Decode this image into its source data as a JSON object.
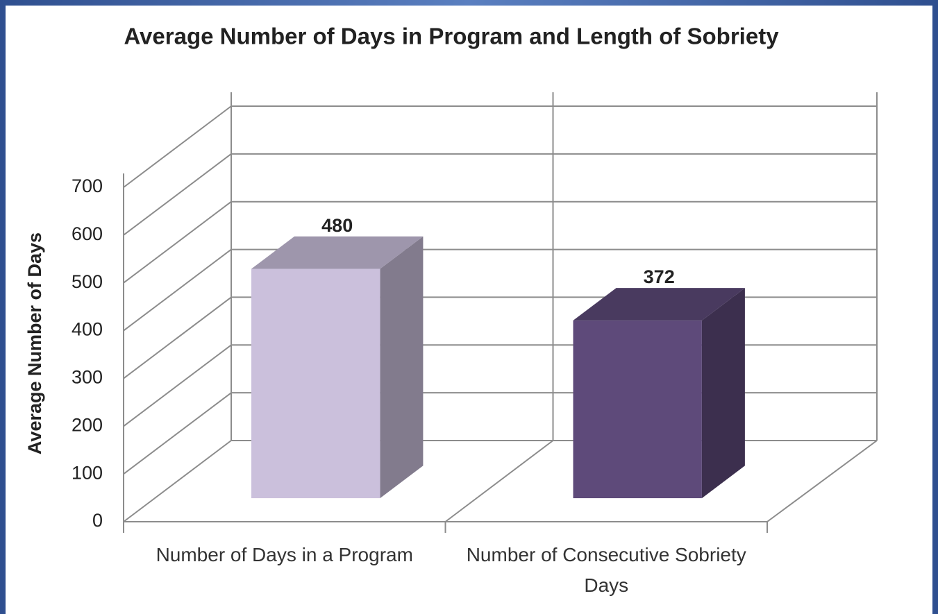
{
  "chart_data": {
    "type": "bar3d",
    "title": "Average Number of Days in Program and Length of Sobriety",
    "y_label": "Average Number of Days",
    "categories": [
      "Number of Days in a Program",
      "Number of Consecutive Sobriety Days"
    ],
    "values": [
      480,
      372
    ],
    "colors": [
      "#cbc0dc",
      "#5e4a7a"
    ],
    "ylim": [
      0,
      700
    ],
    "yticks": [
      0,
      100,
      200,
      300,
      400,
      500,
      600,
      700
    ],
    "grid": true
  }
}
